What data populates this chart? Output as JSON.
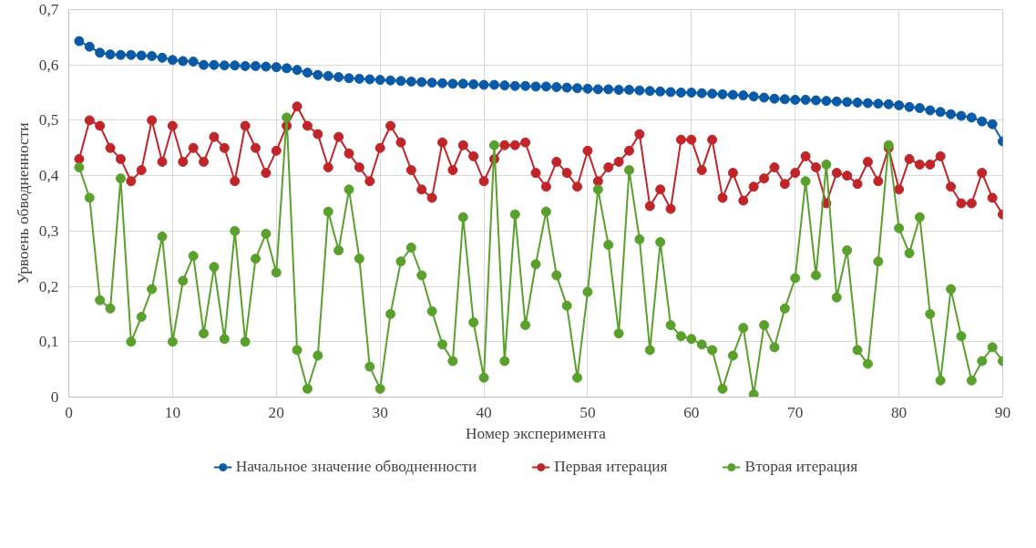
{
  "chart_data": {
    "type": "line",
    "xlabel": "Номер эксперимента",
    "ylabel": "Урвоень обводненности",
    "x": [
      1,
      2,
      3,
      4,
      5,
      6,
      7,
      8,
      9,
      10,
      11,
      12,
      13,
      14,
      15,
      16,
      17,
      18,
      19,
      20,
      21,
      22,
      23,
      24,
      25,
      26,
      27,
      28,
      29,
      30,
      31,
      32,
      33,
      34,
      35,
      36,
      37,
      38,
      39,
      40,
      41,
      42,
      43,
      44,
      45,
      46,
      47,
      48,
      49,
      50,
      51,
      52,
      53,
      54,
      55,
      56,
      57,
      58,
      59,
      60,
      61,
      62,
      63,
      64,
      65,
      66,
      67,
      68,
      69,
      70,
      71,
      72,
      73,
      74,
      75,
      76,
      77,
      78,
      79,
      80,
      81,
      82,
      83,
      84,
      85,
      86,
      87,
      88,
      89,
      90
    ],
    "series": [
      {
        "name": "Начальное значение обводненности",
        "color": "#0a5aa8",
        "values": [
          0.643,
          0.633,
          0.622,
          0.619,
          0.618,
          0.618,
          0.617,
          0.616,
          0.613,
          0.609,
          0.607,
          0.606,
          0.6,
          0.6,
          0.599,
          0.599,
          0.598,
          0.598,
          0.597,
          0.596,
          0.594,
          0.591,
          0.586,
          0.582,
          0.58,
          0.578,
          0.576,
          0.575,
          0.574,
          0.573,
          0.572,
          0.571,
          0.57,
          0.569,
          0.568,
          0.567,
          0.566,
          0.566,
          0.565,
          0.564,
          0.564,
          0.563,
          0.562,
          0.562,
          0.561,
          0.561,
          0.56,
          0.559,
          0.558,
          0.557,
          0.556,
          0.556,
          0.555,
          0.555,
          0.554,
          0.553,
          0.552,
          0.551,
          0.55,
          0.55,
          0.549,
          0.548,
          0.547,
          0.546,
          0.545,
          0.543,
          0.541,
          0.539,
          0.538,
          0.537,
          0.537,
          0.536,
          0.535,
          0.534,
          0.533,
          0.532,
          0.531,
          0.53,
          0.529,
          0.527,
          0.524,
          0.522,
          0.518,
          0.515,
          0.511,
          0.508,
          0.505,
          0.498,
          0.493,
          0.462
        ]
      },
      {
        "name": "Первая итерация",
        "color": "#c0252a",
        "values": [
          0.43,
          0.5,
          0.49,
          0.45,
          0.43,
          0.39,
          0.41,
          0.5,
          0.425,
          0.49,
          0.425,
          0.45,
          0.425,
          0.47,
          0.45,
          0.39,
          0.49,
          0.45,
          0.405,
          0.445,
          0.49,
          0.525,
          0.49,
          0.475,
          0.415,
          0.47,
          0.44,
          0.415,
          0.39,
          0.45,
          0.49,
          0.46,
          0.41,
          0.375,
          0.36,
          0.46,
          0.41,
          0.455,
          0.435,
          0.39,
          0.43,
          0.455,
          0.455,
          0.46,
          0.405,
          0.38,
          0.425,
          0.405,
          0.38,
          0.445,
          0.39,
          0.415,
          0.425,
          0.445,
          0.475,
          0.345,
          0.375,
          0.34,
          0.465,
          0.465,
          0.41,
          0.465,
          0.36,
          0.405,
          0.355,
          0.38,
          0.395,
          0.415,
          0.385,
          0.405,
          0.435,
          0.415,
          0.35,
          0.405,
          0.4,
          0.385,
          0.425,
          0.39,
          0.45,
          0.375,
          0.43,
          0.42,
          0.42,
          0.435,
          0.38,
          0.35,
          0.35,
          0.405,
          0.36,
          0.33
        ]
      },
      {
        "name": "Вторая итерация",
        "color": "#5aa02c",
        "values": [
          0.415,
          0.36,
          0.175,
          0.16,
          0.395,
          0.1,
          0.145,
          0.195,
          0.29,
          0.1,
          0.21,
          0.255,
          0.115,
          0.235,
          0.105,
          0.3,
          0.1,
          0.25,
          0.295,
          0.225,
          0.505,
          0.085,
          0.015,
          0.075,
          0.335,
          0.265,
          0.375,
          0.25,
          0.055,
          0.015,
          0.15,
          0.245,
          0.27,
          0.22,
          0.155,
          0.095,
          0.065,
          0.325,
          0.135,
          0.035,
          0.455,
          0.065,
          0.33,
          0.13,
          0.24,
          0.335,
          0.22,
          0.165,
          0.035,
          0.19,
          0.375,
          0.275,
          0.115,
          0.41,
          0.285,
          0.085,
          0.28,
          0.13,
          0.11,
          0.105,
          0.095,
          0.085,
          0.015,
          0.075,
          0.125,
          0.005,
          0.13,
          0.09,
          0.16,
          0.215,
          0.39,
          0.22,
          0.42,
          0.18,
          0.265,
          0.085,
          0.06,
          0.245,
          0.455,
          0.305,
          0.26,
          0.325,
          0.15,
          0.03,
          0.195,
          0.11,
          0.03,
          0.065,
          0.09,
          0.065
        ]
      }
    ],
    "xlim": [
      0,
      90
    ],
    "xticks": [
      0,
      10,
      20,
      30,
      40,
      50,
      60,
      70,
      80,
      90
    ],
    "ylim": [
      0,
      0.7
    ],
    "yticks": [
      0,
      {
        "value": 0.1,
        "label": "0,1"
      },
      {
        "value": 0.2,
        "label": "0,2"
      },
      {
        "value": 0.3,
        "label": "0,3"
      },
      {
        "value": 0.4,
        "label": "0,4"
      },
      {
        "value": 0.5,
        "label": "0,5"
      },
      {
        "value": 0.6,
        "label": "0,6"
      },
      {
        "value": 0.7,
        "label": "0,7"
      }
    ],
    "grid": true,
    "legend": "bottom",
    "marker": "circle",
    "line_style": "solid"
  }
}
